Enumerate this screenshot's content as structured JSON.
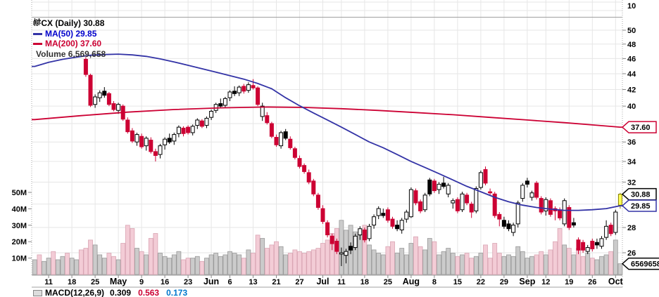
{
  "legend": {
    "symbol": "FCX (Daily) 30.88",
    "ma50": "MA(50) 29.85",
    "ma200": "MA(200) 37.60",
    "volume": "Volume 6,569,658"
  },
  "footer": {
    "label": "MACD(12,26,9)",
    "v1": "0.309",
    "v2": "0.563",
    "v3": "0.173"
  },
  "colors": {
    "red": "#cc0033",
    "blue": "#3333a6",
    "grid": "#e6e6e6",
    "separator": "#a0a0a0",
    "pink_fill": "#f3ccd6",
    "pink_stroke": "#d9a5b3",
    "gray_fill": "#cbcbcb",
    "gray_stroke": "#999999",
    "yellow_fill": "#ffff55",
    "yellow_stroke": "#857c00",
    "axis_text": "#000000"
  },
  "axes": {
    "top_panel_label": "10",
    "price_labels": [
      50,
      48,
      46,
      44,
      42,
      40,
      36,
      34,
      32,
      28,
      26
    ],
    "price_gridlines": [
      26,
      28,
      30,
      32,
      34,
      36,
      38,
      40,
      42,
      44,
      46,
      48,
      50
    ],
    "volume_labels": [
      [
        "50M",
        50
      ],
      [
        "40M",
        40
      ],
      [
        "30M",
        30
      ],
      [
        "20M",
        20
      ],
      [
        "10M",
        10
      ]
    ],
    "date_ticks": [
      [
        "11",
        3
      ],
      [
        "18",
        8
      ],
      [
        "25",
        13
      ],
      [
        "May",
        18
      ],
      [
        "9",
        23
      ],
      [
        "16",
        28
      ],
      [
        "23",
        33
      ],
      [
        "Jun",
        38
      ],
      [
        "6",
        42
      ],
      [
        "13",
        47
      ],
      [
        "21",
        52
      ],
      [
        "27",
        57
      ],
      [
        "Jul",
        62
      ],
      [
        "11",
        66
      ],
      [
        "18",
        71
      ],
      [
        "25",
        76
      ],
      [
        "Aug",
        81
      ],
      [
        "8",
        86
      ],
      [
        "15",
        91
      ],
      [
        "22",
        96
      ],
      [
        "29",
        101
      ],
      [
        "Sep",
        106
      ],
      [
        "12",
        110
      ],
      [
        "19",
        115
      ],
      [
        "26",
        120
      ],
      [
        "Oct",
        125
      ]
    ]
  },
  "tags": [
    {
      "text": "37.60",
      "price": 37.6,
      "border": "#cc0033",
      "bold": false
    },
    {
      "text": "30.88",
      "price": 30.88,
      "border": "#000000",
      "bold": true
    },
    {
      "text": "29.85",
      "price": 29.85,
      "border": "#3333a6",
      "bold": false
    },
    {
      "text": "6569658",
      "volume": 6.57,
      "border": "#000000",
      "bold": false
    }
  ],
  "chart_data": {
    "type": "candlestick",
    "symbol": "FCX",
    "timeframe": "Daily",
    "last_price": 30.88,
    "ma50_value": 29.85,
    "ma200_value": 37.6,
    "last_volume": "6,569,658",
    "price_axis": {
      "min": 26,
      "max": 50,
      "scale": "log",
      "step": 2
    },
    "volume_axis": {
      "min": 0,
      "max": 50,
      "unit": "M",
      "step": 10
    },
    "first_candle_slot": 11,
    "pre_volume": [
      [
        9,
        "g"
      ],
      [
        12,
        "p"
      ],
      [
        8,
        "g"
      ],
      [
        10,
        "g"
      ],
      [
        14,
        "p"
      ],
      [
        9,
        "g"
      ],
      [
        11,
        "g"
      ],
      [
        13,
        "p"
      ],
      [
        10,
        "g"
      ],
      [
        9,
        "g"
      ],
      [
        15,
        "p"
      ]
    ],
    "candles": [
      [
        "r",
        45.9,
        46.2,
        43.6,
        43.9,
        16
      ],
      [
        "r",
        43.8,
        44.0,
        39.9,
        40.1,
        21
      ],
      [
        "w",
        40.2,
        41.4,
        39.8,
        41.1,
        18
      ],
      [
        "w",
        41.0,
        41.9,
        40.5,
        41.6,
        12
      ],
      [
        "k",
        41.8,
        42.3,
        41.0,
        41.3,
        10
      ],
      [
        "r",
        41.5,
        41.7,
        40.0,
        40.2,
        13
      ],
      [
        "r",
        40.3,
        40.6,
        39.4,
        39.6,
        11
      ],
      [
        "w",
        39.5,
        40.4,
        39.1,
        40.2,
        9
      ],
      [
        "r",
        40.0,
        40.2,
        38.3,
        38.5,
        19
      ],
      [
        "r",
        38.4,
        38.7,
        36.9,
        37.1,
        30
      ],
      [
        "r",
        37.2,
        37.5,
        35.9,
        36.1,
        28
      ],
      [
        "w",
        36.0,
        37.0,
        35.6,
        36.8,
        16
      ],
      [
        "r",
        36.6,
        36.9,
        35.3,
        35.5,
        14
      ],
      [
        "w",
        35.6,
        36.6,
        35.1,
        36.4,
        12
      ],
      [
        "r",
        36.2,
        36.5,
        34.8,
        35.0,
        22
      ],
      [
        "r",
        35.0,
        35.3,
        34.0,
        34.6,
        25
      ],
      [
        "w",
        34.7,
        35.8,
        34.3,
        35.6,
        13
      ],
      [
        "w",
        35.7,
        36.5,
        35.2,
        36.3,
        11
      ],
      [
        "k",
        36.4,
        36.9,
        35.8,
        36.0,
        10
      ],
      [
        "w",
        36.1,
        37.0,
        35.7,
        36.8,
        12
      ],
      [
        "w",
        36.9,
        37.8,
        36.5,
        37.6,
        14
      ],
      [
        "r",
        37.5,
        37.7,
        36.6,
        36.9,
        9
      ],
      [
        "r",
        37.6,
        37.8,
        36.8,
        37.0,
        10
      ],
      [
        "w",
        37.0,
        37.9,
        36.7,
        37.7,
        10
      ],
      [
        "w",
        37.8,
        38.6,
        37.4,
        38.4,
        11
      ],
      [
        "r",
        38.3,
        38.5,
        37.5,
        37.7,
        8
      ],
      [
        "w",
        37.8,
        38.8,
        37.5,
        38.6,
        10
      ],
      [
        "w",
        38.7,
        39.6,
        38.4,
        39.4,
        12
      ],
      [
        "w",
        39.5,
        40.4,
        39.2,
        40.2,
        13
      ],
      [
        "k",
        40.3,
        40.9,
        39.8,
        40.0,
        11
      ],
      [
        "w",
        40.1,
        41.1,
        39.8,
        40.9,
        12
      ],
      [
        "w",
        41.0,
        41.9,
        40.6,
        41.7,
        14
      ],
      [
        "k",
        41.8,
        42.4,
        41.2,
        41.5,
        13
      ],
      [
        "w",
        41.6,
        42.5,
        41.2,
        42.3,
        12
      ],
      [
        "r",
        42.4,
        42.7,
        41.5,
        41.8,
        10
      ],
      [
        "w",
        41.9,
        42.9,
        41.6,
        42.6,
        15
      ],
      [
        "r",
        42.5,
        43.3,
        42.0,
        42.2,
        13
      ],
      [
        "r",
        42.2,
        42.4,
        40.0,
        40.2,
        24
      ],
      [
        "w",
        40.0,
        40.4,
        38.3,
        38.8,
        22
      ],
      [
        "r",
        38.9,
        39.3,
        37.9,
        38.1,
        16
      ],
      [
        "r",
        38.0,
        38.2,
        36.4,
        36.6,
        18
      ],
      [
        "r",
        36.5,
        36.8,
        35.5,
        35.7,
        20
      ],
      [
        "w",
        35.6,
        37.2,
        35.3,
        37.0,
        17
      ],
      [
        "k",
        37.1,
        37.4,
        36.2,
        36.4,
        12
      ],
      [
        "r",
        36.3,
        36.6,
        35.2,
        35.4,
        13
      ],
      [
        "r",
        35.3,
        35.5,
        34.2,
        34.4,
        15
      ],
      [
        "r",
        34.3,
        34.6,
        33.3,
        33.5,
        14
      ],
      [
        "r",
        33.6,
        33.8,
        32.8,
        33.0,
        13
      ],
      [
        "r",
        32.9,
        33.2,
        31.8,
        32.0,
        14
      ],
      [
        "r",
        32.1,
        32.3,
        30.7,
        30.9,
        15
      ],
      [
        "r",
        30.8,
        31.0,
        29.5,
        29.7,
        16
      ],
      [
        "r",
        29.6,
        29.9,
        28.3,
        28.5,
        19
      ],
      [
        "r",
        28.4,
        28.6,
        27.2,
        27.4,
        21
      ],
      [
        "r",
        27.3,
        27.5,
        26.2,
        26.7,
        25
      ],
      [
        "r",
        26.9,
        27.1,
        25.9,
        26.1,
        28
      ],
      [
        "w",
        26.0,
        26.4,
        25.0,
        25.9,
        33
      ],
      [
        "w",
        25.8,
        26.3,
        25.2,
        26.1,
        27
      ],
      [
        "k",
        26.2,
        26.8,
        25.9,
        26.5,
        30
      ],
      [
        "w",
        26.4,
        27.5,
        26.2,
        27.3,
        26
      ],
      [
        "w",
        27.4,
        28.1,
        27.0,
        27.9,
        24
      ],
      [
        "r",
        27.8,
        28.0,
        26.8,
        27.0,
        30
      ],
      [
        "w",
        27.1,
        28.3,
        26.9,
        28.1,
        18
      ],
      [
        "w",
        28.2,
        29.1,
        27.9,
        28.9,
        15
      ],
      [
        "w",
        29.0,
        29.8,
        28.7,
        29.6,
        13
      ],
      [
        "k",
        29.2,
        29.6,
        28.8,
        29.0,
        12
      ],
      [
        "r",
        29.5,
        29.7,
        28.4,
        28.6,
        17
      ],
      [
        "r",
        28.7,
        28.9,
        27.9,
        28.1,
        20
      ],
      [
        "k",
        28.2,
        28.6,
        27.7,
        27.9,
        13
      ],
      [
        "w",
        27.8,
        28.8,
        27.5,
        28.6,
        16
      ],
      [
        "w",
        28.7,
        29.5,
        28.4,
        29.3,
        12
      ],
      [
        "w",
        28.9,
        31.5,
        28.8,
        31.3,
        19
      ],
      [
        "r",
        31.2,
        31.4,
        29.9,
        30.1,
        23
      ],
      [
        "r",
        30.2,
        30.4,
        29.2,
        29.4,
        17
      ],
      [
        "w",
        29.5,
        31.0,
        29.3,
        30.8,
        15
      ],
      [
        "k",
        30.9,
        32.4,
        30.7,
        32.2,
        22
      ],
      [
        "r",
        32.1,
        32.3,
        31.0,
        31.2,
        20
      ],
      [
        "w",
        31.3,
        32.0,
        30.9,
        31.8,
        12
      ],
      [
        "k",
        31.9,
        32.5,
        31.4,
        31.6,
        14
      ],
      [
        "w",
        30.9,
        31.9,
        30.6,
        31.7,
        16
      ],
      [
        "w",
        30.1,
        30.5,
        29.6,
        30.3,
        13
      ],
      [
        "r",
        30.4,
        30.6,
        29.2,
        29.4,
        11
      ],
      [
        "w",
        29.5,
        31.1,
        29.3,
        30.9,
        12
      ],
      [
        "r",
        30.8,
        31.0,
        29.9,
        30.1,
        13
      ],
      [
        "r",
        30.0,
        30.2,
        28.8,
        29.3,
        10
      ],
      [
        "w",
        29.4,
        31.6,
        29.2,
        31.4,
        11
      ],
      [
        "w",
        31.5,
        33.1,
        31.3,
        32.9,
        13
      ],
      [
        "r",
        33.2,
        33.5,
        31.7,
        31.9,
        18
      ],
      [
        "r",
        31.1,
        31.4,
        30.8,
        31.0,
        10
      ],
      [
        "r",
        30.9,
        31.1,
        28.8,
        29.0,
        19
      ],
      [
        "r",
        29.1,
        29.3,
        28.1,
        28.7,
        13
      ],
      [
        "k",
        28.6,
        28.9,
        27.9,
        28.1,
        11
      ],
      [
        "k",
        28.3,
        28.6,
        27.7,
        27.9,
        12
      ],
      [
        "w",
        27.6,
        28.4,
        27.3,
        28.2,
        11
      ],
      [
        "w",
        28.3,
        30.3,
        28.0,
        30.1,
        17
      ],
      [
        "w",
        30.5,
        31.9,
        30.2,
        31.7,
        14
      ],
      [
        "k",
        31.8,
        32.4,
        31.5,
        32.1,
        10
      ],
      [
        "w",
        30.6,
        31.2,
        30.3,
        31.0,
        11
      ],
      [
        "r",
        31.9,
        32.1,
        30.4,
        30.6,
        12
      ],
      [
        "r",
        30.5,
        30.7,
        29.1,
        29.3,
        14
      ],
      [
        "w",
        29.4,
        30.6,
        29.0,
        30.4,
        12
      ],
      [
        "r",
        30.3,
        30.5,
        28.9,
        29.1,
        15
      ],
      [
        "r",
        29.4,
        29.8,
        28.6,
        29.6,
        20
      ],
      [
        "r",
        29.5,
        29.7,
        28.6,
        28.8,
        28
      ],
      [
        "w",
        28.3,
        30.5,
        28.1,
        30.3,
        18
      ],
      [
        "r",
        29.7,
        29.9,
        27.8,
        28.0,
        16
      ],
      [
        "k",
        28.4,
        28.8,
        28.0,
        28.2,
        12
      ],
      [
        "r",
        27.0,
        27.2,
        25.9,
        26.2,
        16
      ],
      [
        "r",
        26.8,
        27.0,
        26.0,
        26.2,
        11
      ],
      [
        "w",
        26.1,
        26.6,
        25.9,
        26.4,
        13
      ],
      [
        "r",
        26.9,
        27.1,
        26.1,
        26.3,
        10
      ],
      [
        "k",
        26.8,
        27.1,
        26.3,
        26.6,
        9
      ],
      [
        "w",
        26.5,
        27.3,
        26.3,
        27.1,
        11
      ],
      [
        "w",
        27.2,
        28.6,
        27.0,
        28.1,
        12
      ],
      [
        "r",
        28.2,
        28.4,
        27.3,
        27.5,
        14
      ],
      [
        "w",
        27.6,
        29.5,
        27.4,
        29.3,
        21
      ],
      [
        "y",
        29.9,
        31.0,
        29.6,
        30.88,
        6.57
      ]
    ],
    "ma50": [
      [
        0,
        44.95
      ],
      [
        3,
        45.5
      ],
      [
        6,
        45.9
      ],
      [
        9,
        46.2
      ],
      [
        12,
        46.45
      ],
      [
        15,
        46.55
      ],
      [
        18,
        46.6
      ],
      [
        21,
        46.5
      ],
      [
        24,
        46.3
      ],
      [
        27,
        45.95
      ],
      [
        30,
        45.55
      ],
      [
        33,
        45.1
      ],
      [
        36,
        44.65
      ],
      [
        39,
        44.2
      ],
      [
        42,
        43.75
      ],
      [
        45,
        43.3
      ],
      [
        48,
        42.75
      ],
      [
        51,
        42.1
      ],
      [
        54,
        41.0
      ],
      [
        57,
        40.05
      ],
      [
        60,
        39.2
      ],
      [
        63,
        38.4
      ],
      [
        66,
        37.6
      ],
      [
        69,
        36.8
      ],
      [
        72,
        36.0
      ],
      [
        75,
        35.4
      ],
      [
        78,
        34.7
      ],
      [
        81,
        34.0
      ],
      [
        84,
        33.4
      ],
      [
        87,
        32.8
      ],
      [
        90,
        32.2
      ],
      [
        93,
        31.6
      ],
      [
        96,
        31.1
      ],
      [
        99,
        30.6
      ],
      [
        102,
        30.2
      ],
      [
        105,
        29.9
      ],
      [
        108,
        29.7
      ],
      [
        111,
        29.55
      ],
      [
        114,
        29.45
      ],
      [
        117,
        29.45
      ],
      [
        120,
        29.5
      ],
      [
        123,
        29.6
      ],
      [
        126,
        29.85
      ]
    ],
    "ma200": [
      [
        0,
        38.45
      ],
      [
        10,
        38.9
      ],
      [
        20,
        39.3
      ],
      [
        30,
        39.6
      ],
      [
        40,
        39.8
      ],
      [
        50,
        39.9
      ],
      [
        58,
        39.85
      ],
      [
        66,
        39.7
      ],
      [
        74,
        39.5
      ],
      [
        82,
        39.25
      ],
      [
        90,
        39.0
      ],
      [
        98,
        38.7
      ],
      [
        106,
        38.4
      ],
      [
        114,
        38.1
      ],
      [
        120,
        37.85
      ],
      [
        126,
        37.6
      ]
    ]
  }
}
